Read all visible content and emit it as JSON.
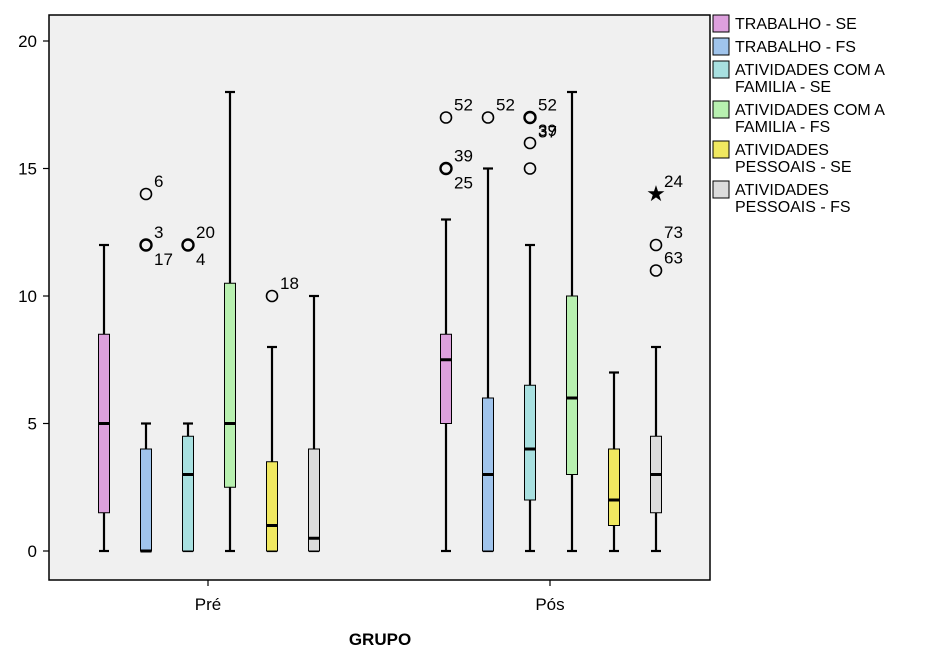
{
  "chart_data": {
    "type": "boxplot",
    "xlabel": "GRUPO",
    "ylabel": "",
    "ylim": [
      -1,
      21
    ],
    "yticks": [
      0,
      5,
      10,
      15,
      20
    ],
    "groups": [
      "Pré",
      "Pós"
    ],
    "legend_position": "right",
    "series": [
      {
        "name": "TRABALHO - SE",
        "color": "#dda0dd"
      },
      {
        "name": "TRABALHO - FS",
        "color": "#a0c4ec"
      },
      {
        "name": "ATIVIDADES COM A FAMILIA - SE",
        "color": "#a8e0e0"
      },
      {
        "name": "ATIVIDADES COM A FAMILIA - FS",
        "color": "#b8f0b0"
      },
      {
        "name": "ATIVIDADES PESSOAIS - SE",
        "color": "#f0e860"
      },
      {
        "name": "ATIVIDADES PESSOAIS - FS",
        "color": "#dcdcdc"
      }
    ],
    "boxes": [
      {
        "group": "Pré",
        "series": 0,
        "min": 0,
        "q1": 1.5,
        "median": 5,
        "q3": 8.5,
        "max": 12,
        "outliers": []
      },
      {
        "group": "Pré",
        "series": 1,
        "min": 0,
        "q1": 0,
        "median": 0,
        "q3": 4,
        "max": 5,
        "outliers": [
          {
            "value": 14,
            "label": "6"
          },
          {
            "value": 12,
            "label": "3"
          },
          {
            "value": 12,
            "label": "17"
          }
        ]
      },
      {
        "group": "Pré",
        "series": 2,
        "min": 0,
        "q1": 0,
        "median": 3,
        "q3": 4.5,
        "max": 5,
        "outliers": [
          {
            "value": 12,
            "label": "20"
          },
          {
            "value": 12,
            "label": "4"
          }
        ]
      },
      {
        "group": "Pré",
        "series": 3,
        "min": 0,
        "q1": 2.5,
        "median": 5,
        "q3": 10.5,
        "max": 18,
        "outliers": []
      },
      {
        "group": "Pré",
        "series": 4,
        "min": 0,
        "q1": 0,
        "median": 1,
        "q3": 3.5,
        "max": 8,
        "outliers": [
          {
            "value": 10,
            "label": "18"
          }
        ]
      },
      {
        "group": "Pré",
        "series": 5,
        "min": 0,
        "q1": 0,
        "median": 0.5,
        "q3": 4,
        "max": 10,
        "outliers": []
      },
      {
        "group": "Pós",
        "series": 0,
        "min": 0,
        "q1": 5,
        "median": 7.5,
        "q3": 8.5,
        "max": 13,
        "outliers": [
          {
            "value": 17,
            "label": "52"
          },
          {
            "value": 15,
            "label": "39"
          },
          {
            "value": 15,
            "label": "25"
          }
        ]
      },
      {
        "group": "Pós",
        "series": 1,
        "min": 0,
        "q1": 0,
        "median": 3,
        "q3": 6,
        "max": 15,
        "outliers": [
          {
            "value": 17,
            "label": "52"
          }
        ]
      },
      {
        "group": "Pós",
        "series": 2,
        "min": 0,
        "q1": 2,
        "median": 4,
        "q3": 6.5,
        "max": 12,
        "outliers": [
          {
            "value": 17,
            "label": "52"
          },
          {
            "value": 17,
            "label": "37"
          },
          {
            "value": 16,
            "label": "39"
          },
          {
            "value": 15,
            "label": ""
          }
        ]
      },
      {
        "group": "Pós",
        "series": 3,
        "min": 0,
        "q1": 3,
        "median": 6,
        "q3": 10,
        "max": 18,
        "outliers": []
      },
      {
        "group": "Pós",
        "series": 4,
        "min": 0,
        "q1": 1,
        "median": 2,
        "q3": 4,
        "max": 7,
        "outliers": []
      },
      {
        "group": "Pós",
        "series": 5,
        "min": 0,
        "q1": 1.5,
        "median": 3,
        "q3": 4.5,
        "max": 8,
        "outliers": [
          {
            "value": 14,
            "label": "24",
            "extreme": true
          },
          {
            "value": 12,
            "label": "73"
          },
          {
            "value": 11,
            "label": "63"
          }
        ]
      }
    ]
  }
}
